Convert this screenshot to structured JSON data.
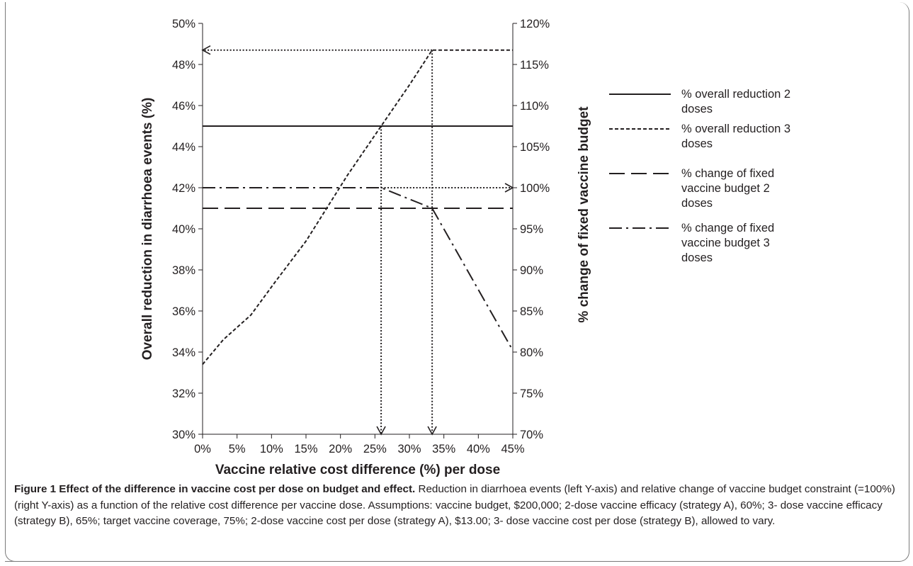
{
  "chart_data": {
    "type": "line",
    "xlabel": "Vaccine relative cost difference (%) per dose",
    "ylabel_left": "Overall reduction in diarrhoea events (%)",
    "ylabel_right": "% change of fixed vaccine budget",
    "x_ticks": [
      "0%",
      "5%",
      "10%",
      "15%",
      "20%",
      "25%",
      "30%",
      "35%",
      "40%",
      "45%"
    ],
    "xlim": [
      0,
      45
    ],
    "y_left_ticks": [
      "30%",
      "32%",
      "34%",
      "36%",
      "38%",
      "40%",
      "42%",
      "44%",
      "46%",
      "48%",
      "50%"
    ],
    "ylim_left": [
      30,
      50
    ],
    "y_right_ticks": [
      "70%",
      "75%",
      "80%",
      "85%",
      "90%",
      "95%",
      "100%",
      "105%",
      "110%",
      "115%",
      "120%"
    ],
    "ylim_right": [
      70,
      120
    ],
    "grid": false,
    "legend_position": "right",
    "series": [
      {
        "name": "% overall reduction 2 doses",
        "axis": "left",
        "style": "solid",
        "points": [
          [
            0,
            45
          ],
          [
            45,
            45
          ]
        ]
      },
      {
        "name": "% overall reduction 3 doses",
        "axis": "left",
        "style": "dashed",
        "points": [
          [
            0,
            33.4
          ],
          [
            3,
            34.6
          ],
          [
            7,
            35.8
          ],
          [
            10.5,
            37.4
          ],
          [
            15,
            39.4
          ],
          [
            18,
            41.0
          ],
          [
            21,
            42.6
          ],
          [
            25.9,
            45.0
          ],
          [
            30,
            47.0
          ],
          [
            33.3,
            48.7
          ],
          [
            45,
            48.7
          ]
        ]
      },
      {
        "name": "% change of fixed vaccine budget 2 doses",
        "axis": "right",
        "style": "longdash",
        "points": [
          [
            0,
            97.5
          ],
          [
            45,
            97.5
          ]
        ]
      },
      {
        "name": "% change of fixed vaccine budget 3 doses",
        "axis": "right",
        "style": "dashdot",
        "points": [
          [
            0,
            100
          ],
          [
            25.9,
            100
          ],
          [
            33.3,
            97.5
          ],
          [
            45,
            80.2
          ]
        ]
      }
    ],
    "annotations": [
      {
        "type": "dotted-arrow-left",
        "axis": "left",
        "from": [
          33.3,
          48.7
        ],
        "to": [
          0,
          48.7
        ]
      },
      {
        "type": "dotted-arrow-down",
        "axis": "left",
        "from": [
          33.3,
          48.7
        ],
        "to": [
          33.3,
          30
        ]
      },
      {
        "type": "dotted-arrow-down",
        "axis": "left",
        "from": [
          25.9,
          45.0
        ],
        "to": [
          25.9,
          30
        ]
      },
      {
        "type": "dotted-arrow-right",
        "axis": "right",
        "from": [
          25.9,
          100
        ],
        "to": [
          45,
          100
        ]
      }
    ]
  },
  "caption": {
    "title": "Figure 1 Effect of the difference in vaccine cost per dose on budget and effect.",
    "text": "Reduction in diarrhoea events (left Y-axis) and relative change of vaccine budget constraint (=100%) (right Y-axis) as a function of the relative cost difference per vaccine dose. Assumptions: vaccine budget, $200,000; 2-dose vaccine efficacy (strategy A), 60%; 3- dose vaccine efficacy (strategy B), 65%; target vaccine coverage, 75%; 2-dose vaccine cost per dose (strategy A), $13.00; 3- dose vaccine cost per dose (strategy B), allowed to vary."
  },
  "legend": [
    {
      "label_lines": [
        "% overall reduction 2",
        "doses"
      ],
      "style": "solid"
    },
    {
      "label_lines": [
        "% overall reduction 3",
        "doses"
      ],
      "style": "dashed"
    },
    {
      "label_lines": [
        "% change of fixed",
        "vaccine budget 2",
        "doses"
      ],
      "style": "longdash"
    },
    {
      "label_lines": [
        "% change of fixed",
        "vaccine budget 3",
        "doses"
      ],
      "style": "dashdot"
    }
  ]
}
